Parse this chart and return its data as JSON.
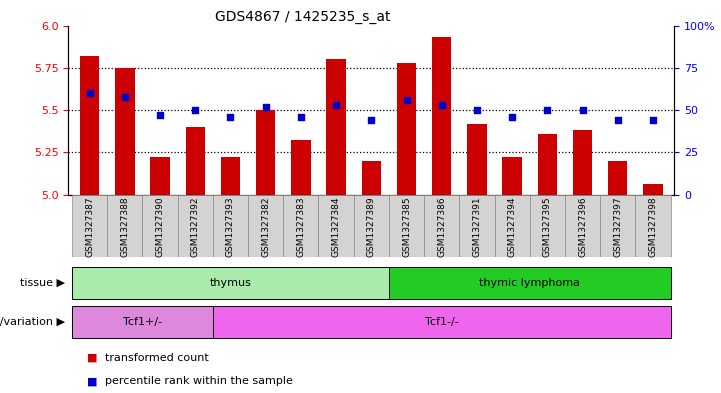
{
  "title": "GDS4867 / 1425235_s_at",
  "samples": [
    "GSM1327387",
    "GSM1327388",
    "GSM1327390",
    "GSM1327392",
    "GSM1327393",
    "GSM1327382",
    "GSM1327383",
    "GSM1327384",
    "GSM1327389",
    "GSM1327385",
    "GSM1327386",
    "GSM1327391",
    "GSM1327394",
    "GSM1327395",
    "GSM1327396",
    "GSM1327397",
    "GSM1327398"
  ],
  "transformed_count": [
    5.82,
    5.75,
    5.22,
    5.4,
    5.22,
    5.5,
    5.32,
    5.8,
    5.2,
    5.78,
    5.93,
    5.42,
    5.22,
    5.36,
    5.38,
    5.2,
    5.06
  ],
  "percentile_rank": [
    60,
    58,
    47,
    50,
    46,
    52,
    46,
    53,
    44,
    56,
    53,
    50,
    46,
    50,
    50,
    44,
    44
  ],
  "ylim_left": [
    5.0,
    6.0
  ],
  "ylim_right": [
    0,
    100
  ],
  "yticks_left": [
    5.0,
    5.25,
    5.5,
    5.75,
    6.0
  ],
  "yticks_right": [
    0,
    25,
    50,
    75,
    100
  ],
  "bar_color": "#CC0000",
  "dot_color": "#0000CC",
  "tissue_groups": [
    {
      "label": "thymus",
      "start": 0,
      "end": 9,
      "color": "#AAEAAA"
    },
    {
      "label": "thymic lymphoma",
      "start": 9,
      "end": 17,
      "color": "#22CC22"
    }
  ],
  "genotype_groups": [
    {
      "label": "Tcf1+/-",
      "start": 0,
      "end": 4,
      "color": "#DD88DD"
    },
    {
      "label": "Tcf1-/-",
      "start": 4,
      "end": 17,
      "color": "#EE66EE"
    }
  ],
  "legend_items": [
    {
      "label": "transformed count",
      "color": "#CC0000"
    },
    {
      "label": "percentile rank within the sample",
      "color": "#0000CC"
    }
  ],
  "tissue_label": "tissue",
  "genotype_label": "genotype/variation",
  "xtick_bg_color": "#D3D3D3",
  "xtick_border_color": "#888888"
}
